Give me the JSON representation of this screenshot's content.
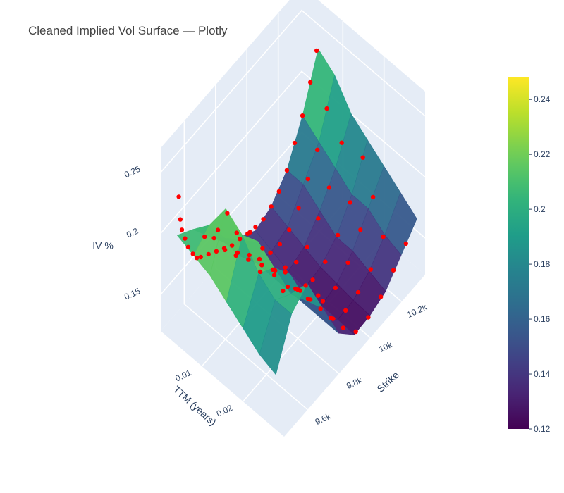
{
  "chart_data": {
    "type": "surface3d",
    "title": "Cleaned Implied Vol Surface — Plotly",
    "axes": {
      "x": {
        "label": "Strike",
        "range": [
          9450,
          10350
        ],
        "ticks": [
          9600,
          9800,
          10000,
          10200
        ],
        "tick_labels": [
          "9.6k",
          "9.8k",
          "10k",
          "10.2k"
        ]
      },
      "y": {
        "label": "TTM (years)",
        "range": [
          0.0,
          0.03
        ],
        "ticks": [
          0.01,
          0.02
        ],
        "tick_labels": [
          "0.01",
          "0.02"
        ]
      },
      "z": {
        "label": "IV %",
        "range": [
          0.12,
          0.27
        ],
        "ticks": [
          0.15,
          0.2,
          0.25
        ],
        "tick_labels": [
          "0.15",
          "0.2",
          "0.25"
        ]
      }
    },
    "colorbar": {
      "colorscale": "Viridis",
      "range": [
        0.12,
        0.248
      ],
      "ticks": [
        0.12,
        0.14,
        0.16,
        0.18,
        0.2,
        0.22,
        0.24
      ],
      "tick_labels": [
        "0.12",
        "0.14",
        "0.16",
        "0.18",
        "0.2",
        "0.22",
        "0.24"
      ]
    },
    "surface": {
      "name": "surface",
      "strikes": [
        9450,
        9550,
        9650,
        9750,
        9850,
        9950,
        10050,
        10150,
        10250,
        10350
      ],
      "ttm": [
        0.004,
        0.008,
        0.012,
        0.016,
        0.02,
        0.024,
        0.028
      ],
      "iv": [
        [
          0.21,
          0.2,
          0.18,
          0.16,
          0.15,
          0.14,
          0.145,
          0.16,
          0.19,
          0.23
        ],
        [
          0.205,
          0.215,
          0.19,
          0.16,
          0.14,
          0.135,
          0.14,
          0.16,
          0.18,
          0.22
        ],
        [
          0.2,
          0.24,
          0.2,
          0.17,
          0.14,
          0.13,
          0.135,
          0.15,
          0.17,
          0.2
        ],
        [
          0.19,
          0.23,
          0.21,
          0.17,
          0.14,
          0.128,
          0.13,
          0.14,
          0.16,
          0.19
        ],
        [
          0.18,
          0.21,
          0.2,
          0.18,
          0.14,
          0.125,
          0.128,
          0.14,
          0.16,
          0.18
        ],
        [
          0.17,
          0.2,
          0.19,
          0.17,
          0.14,
          0.125,
          0.126,
          0.135,
          0.15,
          0.17
        ],
        [
          0.165,
          0.2,
          0.21,
          0.175,
          0.14,
          0.124,
          0.125,
          0.13,
          0.145,
          0.16
        ]
      ]
    },
    "market_points": {
      "name": "market quotes",
      "color": "#ff0000",
      "points": [
        [
          9460,
          0.004,
          0.24
        ],
        [
          9470,
          0.004,
          0.22
        ],
        [
          9480,
          0.004,
          0.21
        ],
        [
          9500,
          0.004,
          0.2
        ],
        [
          9520,
          0.004,
          0.19
        ],
        [
          9550,
          0.004,
          0.18
        ],
        [
          9600,
          0.004,
          0.17
        ],
        [
          9650,
          0.004,
          0.165
        ],
        [
          9700,
          0.004,
          0.16
        ],
        [
          9750,
          0.004,
          0.155
        ],
        [
          9800,
          0.004,
          0.15
        ],
        [
          9850,
          0.004,
          0.148
        ],
        [
          9900,
          0.004,
          0.145
        ],
        [
          9950,
          0.004,
          0.143
        ],
        [
          10000,
          0.004,
          0.142
        ],
        [
          10050,
          0.004,
          0.145
        ],
        [
          10100,
          0.004,
          0.15
        ],
        [
          10150,
          0.004,
          0.16
        ],
        [
          10200,
          0.004,
          0.175
        ],
        [
          10250,
          0.004,
          0.19
        ],
        [
          10300,
          0.004,
          0.21
        ],
        [
          10340,
          0.004,
          0.23
        ],
        [
          9470,
          0.008,
          0.2
        ],
        [
          9520,
          0.008,
          0.21
        ],
        [
          9580,
          0.008,
          0.2
        ],
        [
          9650,
          0.008,
          0.18
        ],
        [
          9720,
          0.008,
          0.165
        ],
        [
          9800,
          0.008,
          0.15
        ],
        [
          9870,
          0.008,
          0.14
        ],
        [
          9940,
          0.008,
          0.135
        ],
        [
          10000,
          0.008,
          0.133
        ],
        [
          10060,
          0.008,
          0.136
        ],
        [
          10120,
          0.008,
          0.145
        ],
        [
          10180,
          0.008,
          0.16
        ],
        [
          10240,
          0.008,
          0.175
        ],
        [
          10300,
          0.008,
          0.2
        ],
        [
          9500,
          0.012,
          0.23
        ],
        [
          9560,
          0.012,
          0.235
        ],
        [
          9620,
          0.012,
          0.21
        ],
        [
          9700,
          0.012,
          0.18
        ],
        [
          9780,
          0.012,
          0.16
        ],
        [
          9860,
          0.012,
          0.14
        ],
        [
          9930,
          0.012,
          0.132
        ],
        [
          10000,
          0.012,
          0.13
        ],
        [
          10070,
          0.012,
          0.132
        ],
        [
          10140,
          0.012,
          0.145
        ],
        [
          10210,
          0.012,
          0.16
        ],
        [
          10290,
          0.012,
          0.185
        ],
        [
          9520,
          0.016,
          0.22
        ],
        [
          9600,
          0.016,
          0.225
        ],
        [
          9680,
          0.016,
          0.2
        ],
        [
          9760,
          0.016,
          0.17
        ],
        [
          9840,
          0.016,
          0.145
        ],
        [
          9920,
          0.016,
          0.13
        ],
        [
          10000,
          0.016,
          0.127
        ],
        [
          10080,
          0.016,
          0.13
        ],
        [
          10160,
          0.016,
          0.14
        ],
        [
          10240,
          0.016,
          0.155
        ],
        [
          10320,
          0.016,
          0.18
        ],
        [
          9560,
          0.02,
          0.21
        ],
        [
          9640,
          0.02,
          0.2
        ],
        [
          9720,
          0.02,
          0.19
        ],
        [
          9800,
          0.02,
          0.16
        ],
        [
          9880,
          0.02,
          0.14
        ],
        [
          9960,
          0.02,
          0.127
        ],
        [
          10040,
          0.02,
          0.126
        ],
        [
          10120,
          0.02,
          0.135
        ],
        [
          10200,
          0.02,
          0.15
        ],
        [
          10280,
          0.02,
          0.165
        ],
        [
          9600,
          0.024,
          0.2
        ],
        [
          9680,
          0.024,
          0.19
        ],
        [
          9760,
          0.024,
          0.17
        ],
        [
          9840,
          0.024,
          0.15
        ],
        [
          9920,
          0.024,
          0.13
        ],
        [
          10000,
          0.024,
          0.125
        ],
        [
          10080,
          0.024,
          0.128
        ],
        [
          10160,
          0.024,
          0.135
        ],
        [
          10240,
          0.024,
          0.15
        ],
        [
          9640,
          0.028,
          0.21
        ],
        [
          9720,
          0.028,
          0.19
        ],
        [
          9800,
          0.028,
          0.16
        ],
        [
          9880,
          0.028,
          0.14
        ],
        [
          9960,
          0.028,
          0.125
        ],
        [
          10040,
          0.028,
          0.125
        ],
        [
          10120,
          0.028,
          0.13
        ],
        [
          10200,
          0.028,
          0.14
        ],
        [
          10280,
          0.028,
          0.15
        ]
      ]
    }
  }
}
